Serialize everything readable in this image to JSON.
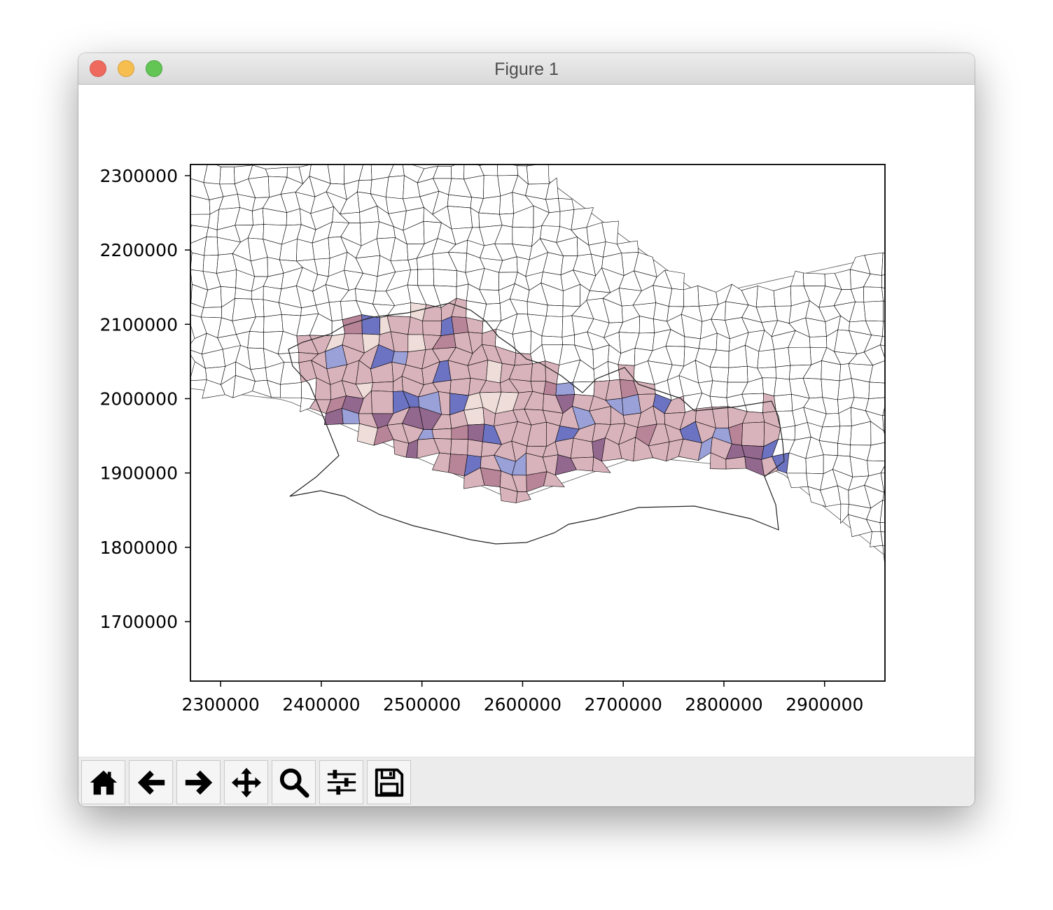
{
  "window": {
    "title": "Figure 1"
  },
  "toolbar": {
    "buttons": [
      {
        "name": "home-button",
        "icon": "home-icon"
      },
      {
        "name": "back-button",
        "icon": "arrow-left-icon"
      },
      {
        "name": "forward-button",
        "icon": "arrow-right-icon"
      },
      {
        "name": "pan-button",
        "icon": "move-icon"
      },
      {
        "name": "zoom-button",
        "icon": "magnifier-icon"
      },
      {
        "name": "configure-subplots-button",
        "icon": "sliders-icon"
      },
      {
        "name": "save-button",
        "icon": "floppy-disk-icon"
      }
    ]
  },
  "chart_data": {
    "type": "choropleth-map",
    "title": "",
    "xlabel": "",
    "ylabel": "",
    "xlim": [
      2270000,
      2960000
    ],
    "ylim": [
      1620000,
      2315000
    ],
    "x_ticks": [
      2300000,
      2400000,
      2500000,
      2600000,
      2700000,
      2800000,
      2900000
    ],
    "x_tick_labels": [
      "2300000",
      "2400000",
      "2500000",
      "2600000",
      "2700000",
      "2800000",
      "2900000"
    ],
    "y_ticks": [
      1700000,
      1800000,
      1900000,
      2000000,
      2100000,
      2200000,
      2300000
    ],
    "y_tick_labels": [
      "1700000",
      "1800000",
      "1900000",
      "2000000",
      "2100000",
      "2200000",
      "2300000"
    ],
    "grid": false,
    "legend": "none",
    "colors": {
      "background_regions": "#ffffff",
      "region_outline": "#000000",
      "light_pink": "#eeddd9",
      "pink": "#d9b3bb",
      "mauve": "#b88598",
      "purple": "#93688f",
      "light_blue": "#9aa0d8",
      "blue": "#6c73c2"
    }
  }
}
